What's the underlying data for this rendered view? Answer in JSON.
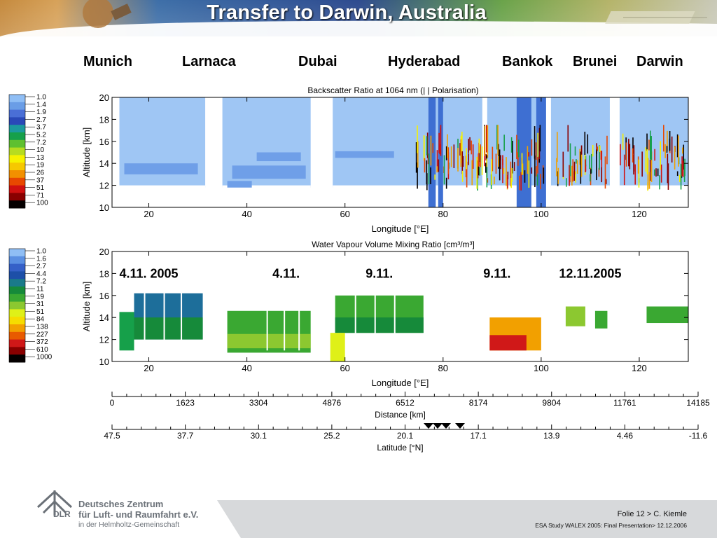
{
  "slide": {
    "title": "Transfer to Darwin, Australia",
    "cities": [
      "Munich",
      "Larnaca",
      "Dubai",
      "Hyderabad",
      "Bankok",
      "Brunei",
      "Darwin"
    ],
    "footer": {
      "folie": "Folie 12 > C. Kiemle",
      "presentation": "ESA Study WALEX 2005: Final Presentation> 12.12.2006",
      "org_line1": "Deutsches Zentrum",
      "org_line2": "für Luft- und Raumfahrt e.V.",
      "org_line3": "in der Helmholtz-Gemeinschaft",
      "logo_text": "DLR"
    }
  },
  "chart_data": [
    {
      "type": "heatmap",
      "title": "Backscatter Ratio at 1064 nm",
      "subtitle": "(| | Polarisation)",
      "xlabel": "Longitude [°E]",
      "ylabel": "Altitude [km]",
      "xlim": [
        12.5,
        130
      ],
      "ylim": [
        10,
        20
      ],
      "xticks": [
        20,
        40,
        60,
        80,
        100,
        120
      ],
      "yticks": [
        10,
        12,
        14,
        16,
        18,
        20
      ],
      "colorbar": {
        "values": [
          "1.0",
          "1.4",
          "1.9",
          "2.7",
          "3.7",
          "5.2",
          "7.2",
          "10",
          "13",
          "19",
          "26",
          "37",
          "51",
          "71",
          "100"
        ],
        "colors": [
          "#8fbef5",
          "#6a9de6",
          "#4a6fd6",
          "#2a49b8",
          "#1c9a9e",
          "#16a04a",
          "#5fc030",
          "#b6dc20",
          "#f6f200",
          "#f6c800",
          "#f29000",
          "#e84800",
          "#d01010",
          "#8a0000",
          "#050000"
        ]
      }
    },
    {
      "type": "heatmap",
      "title": "Water Vapour Volume Mixing Ratio [cm³/m³]",
      "xlabel": "Longitude [°E]",
      "ylabel": "Altitude [km]",
      "xlim": [
        12.5,
        130
      ],
      "ylim": [
        10,
        20
      ],
      "xticks": [
        20,
        40,
        60,
        80,
        100,
        120
      ],
      "yticks": [
        10,
        12,
        14,
        16,
        18,
        20
      ],
      "annotations": [
        "4.11. 2005",
        "4.11.",
        "9.11.",
        "9.11.",
        "12.11.2005"
      ],
      "colorbar": {
        "values": [
          "1.0",
          "1.6",
          "2.7",
          "4.4",
          "7.2",
          "11",
          "19",
          "31",
          "51",
          "84",
          "138",
          "227",
          "372",
          "610",
          "1000"
        ],
        "colors": [
          "#8fbef5",
          "#5a8fe2",
          "#3560c8",
          "#1d4fa8",
          "#1a7a8a",
          "#168a3a",
          "#3aa832",
          "#8cc830",
          "#dff018",
          "#f6dc00",
          "#f2a000",
          "#e85a00",
          "#d01818",
          "#8a0000",
          "#050000"
        ]
      }
    },
    {
      "type": "axis",
      "xlabel": "Distance [km]",
      "ticks": [
        "0",
        "1623",
        "3304",
        "4876",
        "6512",
        "8174",
        "9804",
        "11761",
        "14185"
      ],
      "markers": 4
    },
    {
      "type": "axis",
      "xlabel": "Latitude [°N]",
      "ticks": [
        "47.5",
        "37.7",
        "30.1",
        "25.2",
        "20.1",
        "17.1",
        "13.9",
        "4.46",
        "-11.6"
      ]
    }
  ]
}
